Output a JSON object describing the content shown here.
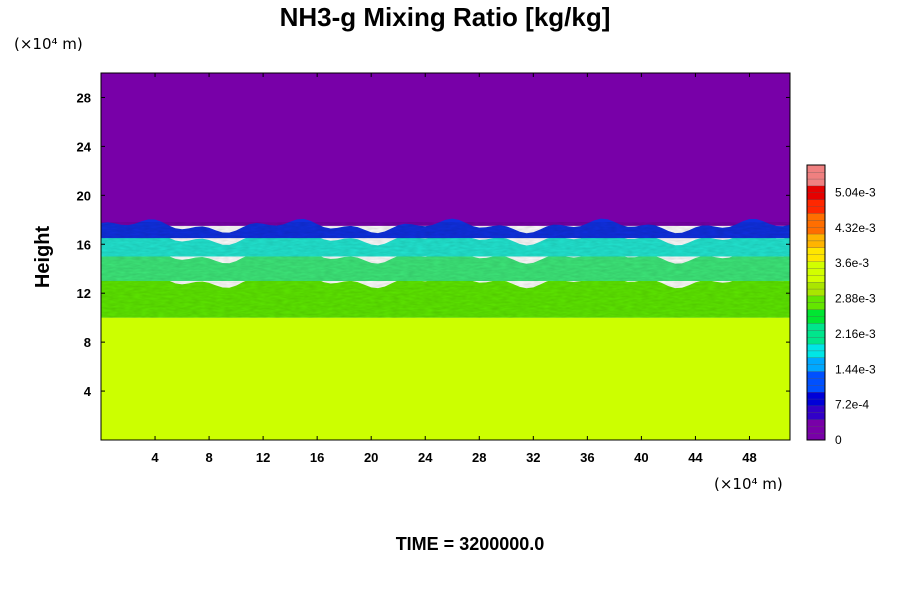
{
  "chart_data": {
    "type": "heatmap",
    "title": "NH3-g Mixing Ratio [kg/kg]",
    "xlabel": "",
    "ylabel": "Height",
    "x_unit": "(×10⁴ m)",
    "y_unit": "(×10⁴ m)",
    "xlim": [
      0,
      51
    ],
    "ylim": [
      0,
      30
    ],
    "x_ticks": [
      "4",
      "8",
      "12",
      "16",
      "20",
      "24",
      "28",
      "32",
      "36",
      "40",
      "44",
      "48"
    ],
    "y_ticks": [
      "4",
      "8",
      "12",
      "16",
      "20",
      "24",
      "28"
    ],
    "x_tick_values": [
      4,
      8,
      12,
      16,
      20,
      24,
      28,
      32,
      36,
      40,
      44,
      48
    ],
    "y_tick_values": [
      4,
      8,
      12,
      16,
      20,
      24,
      28
    ],
    "colorbar": {
      "range": [
        0,
        0.0056
      ],
      "labels": [
        "0",
        "7.2e-4",
        "1.44e-3",
        "2.16e-3",
        "2.88e-3",
        "3.6e-3",
        "4.32e-3",
        "5.04e-3"
      ],
      "label_values": [
        0,
        0.00072,
        0.00144,
        0.00216,
        0.00288,
        0.0036,
        0.00432,
        0.00504
      ],
      "colors": [
        "#7800a8",
        "#3200c8",
        "#0000d8",
        "#0050ff",
        "#00a8ff",
        "#00e6e6",
        "#00e68c",
        "#00e632",
        "#64e600",
        "#aae600",
        "#d2ff00",
        "#ffe600",
        "#ffb400",
        "#ff6e00",
        "#ff2800",
        "#e60000",
        "#f08080"
      ]
    },
    "layers": [
      {
        "y_range": [
          0,
          10
        ],
        "value": 0.0035,
        "color": "#ccff00"
      },
      {
        "y_range": [
          10,
          13
        ],
        "value": 0.003,
        "color": "#5ee800"
      },
      {
        "y_range": [
          13,
          15
        ],
        "value": 0.0022,
        "color": "#3ee87a"
      },
      {
        "y_range": [
          15,
          16.5
        ],
        "value": 0.0016,
        "color": "#22e6d2"
      },
      {
        "y_range": [
          16.5,
          17.5
        ],
        "value": 0.0006,
        "color": "#1030e0"
      },
      {
        "y_range": [
          17.5,
          30
        ],
        "value": 0,
        "color": "#7800a8"
      }
    ],
    "time_label": "TIME = 3200000.0"
  }
}
